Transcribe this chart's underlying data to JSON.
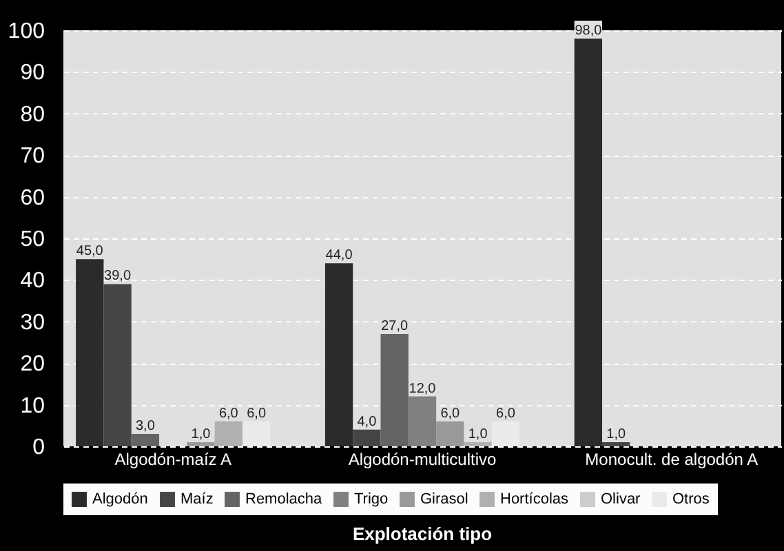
{
  "chart_data": {
    "type": "bar",
    "xlabel": "Explotación tipo",
    "categories": [
      "Algodón-maíz A",
      "Algodón-multicultivo",
      "Monocult. de algodón A"
    ],
    "series": [
      {
        "name": "Algodón",
        "color": "#2b2b2b",
        "values": [
          45,
          44,
          98
        ],
        "value_labels": [
          "45,0",
          "44,0",
          "98,0"
        ]
      },
      {
        "name": "Maíz",
        "color": "#454545",
        "values": [
          39,
          4,
          1
        ],
        "value_labels": [
          "39,0",
          "4,0",
          "1,0"
        ]
      },
      {
        "name": "Remolacha",
        "color": "#646464",
        "values": [
          3,
          27,
          null
        ],
        "value_labels": [
          "3,0",
          "27,0",
          null
        ]
      },
      {
        "name": "Trigo",
        "color": "#808080",
        "values": [
          null,
          12,
          null
        ],
        "value_labels": [
          null,
          "12,0",
          null
        ]
      },
      {
        "name": "Girasol",
        "color": "#999999",
        "values": [
          1,
          6,
          null
        ],
        "value_labels": [
          "1,0",
          "6,0",
          null
        ]
      },
      {
        "name": "Hortícolas",
        "color": "#b0b0b0",
        "values": [
          6,
          1,
          null
        ],
        "value_labels": [
          "6,0",
          "1,0",
          null
        ]
      },
      {
        "name": "Olivar",
        "color": "#cccccc",
        "values": [
          null,
          null,
          null
        ],
        "value_labels": [
          null,
          null,
          null
        ]
      },
      {
        "name": "Otros",
        "color": "#ebebeb",
        "values": [
          6,
          6,
          null
        ],
        "value_labels": [
          "6,0",
          "6,0",
          null
        ]
      }
    ],
    "ylim": [
      0,
      100
    ],
    "yticks": [
      0,
      10,
      20,
      30,
      40,
      50,
      60,
      70,
      80,
      90,
      100
    ],
    "grid": "y",
    "legend": "bottom"
  }
}
